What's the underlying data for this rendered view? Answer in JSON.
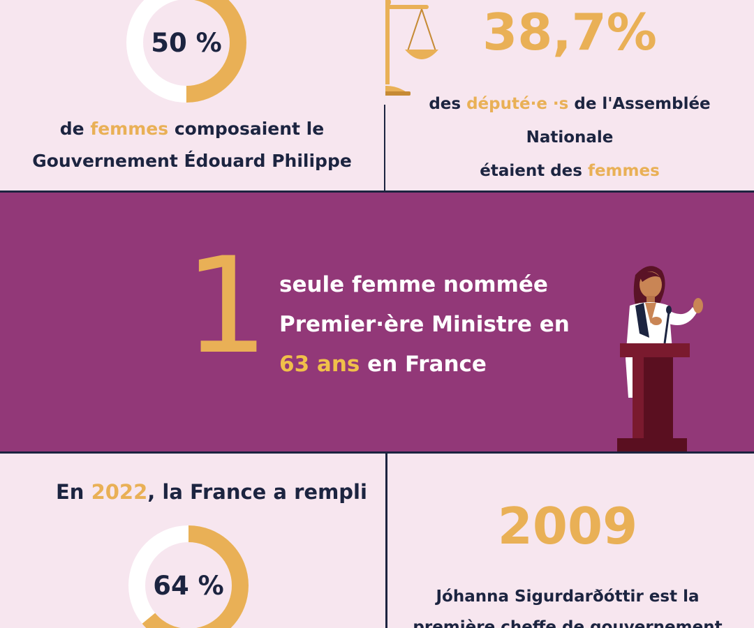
{
  "colors": {
    "navy": "#1c2440",
    "gold": "#e9b056",
    "plum": "#923878",
    "pink_bg": "#f7e6ef",
    "white": "#ffffff"
  },
  "stat_gov": {
    "percent_label": "50 %",
    "fraction": 0.5,
    "line1_pre": "de ",
    "line1_accent": "femmes",
    "line1_post": " composaient le",
    "line2": "Gouvernement Édouard Philippe"
  },
  "stat_assembly": {
    "big": "38,7%",
    "l1_pre": "des  ",
    "l1_accent": "député·e ·s",
    "l1_post": " de l'Assemblée",
    "l2": "Nationale",
    "l3_pre": "étaient des ",
    "l3_accent": "femmes"
  },
  "stat_pm": {
    "big": "1",
    "l1": "seule femme nommée",
    "l2": "Premier·ère Ministre en",
    "l3_accent": "63 ans",
    "l3_post": " en France"
  },
  "stat_2022": {
    "l_pre": "En ",
    "l_accent": "2022",
    "l_post": ", la France a rempli",
    "percent_label": "64 %",
    "fraction": 0.64
  },
  "stat_iceland": {
    "big": "2009",
    "l1": "Jóhanna Sigurdarðóttir est la",
    "l2": "première cheffe de gouvernement"
  },
  "icons": {
    "scale": "scales-of-justice-icon",
    "speaker": "woman-at-podium-illustration"
  }
}
